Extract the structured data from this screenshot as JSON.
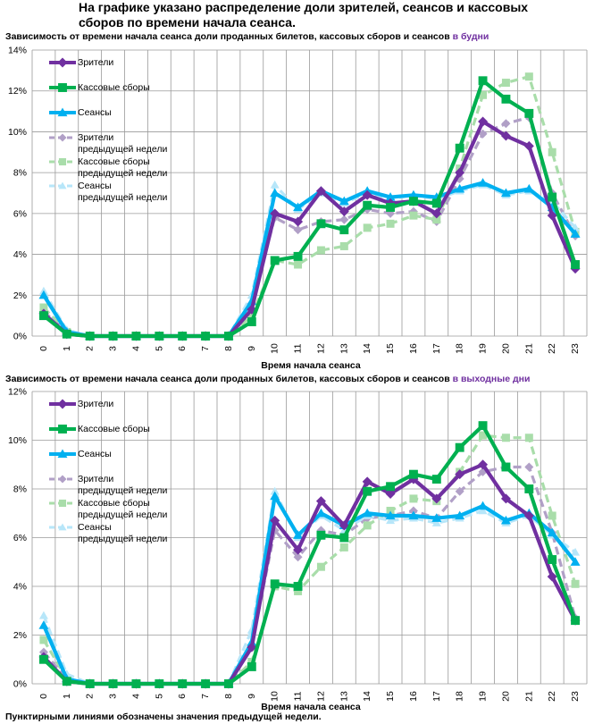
{
  "page": {
    "title": "На графике указано распределение доли зрителей, сеансов и кассовых сборов по времени начала сеанса.",
    "footnote": "Пунктирными линиями обозначены значения предыдущей недели."
  },
  "colors": {
    "viewers": "#7030A0",
    "box_office": "#00B050",
    "sessions": "#00B0F0",
    "viewers_prev": "#B1A0C7",
    "box_office_prev": "#A9DDAA",
    "sessions_prev": "#B7E6F9",
    "accent_text": "#7030A0"
  },
  "chart_data": [
    {
      "type": "line",
      "title": "Зависимость от времени начала сеанса доли проданных билетов, кассовых сборов и сеансов",
      "title_accent": "в будни",
      "xlabel": "Время начала сеанса",
      "ylabel": "",
      "ylim": [
        0,
        14
      ],
      "yticks": [
        0,
        2,
        4,
        6,
        8,
        10,
        12,
        14
      ],
      "ytick_labels": [
        "0%",
        "2%",
        "4%",
        "6%",
        "8%",
        "10%",
        "12%",
        "14%"
      ],
      "categories": [
        "0",
        "1",
        "2",
        "3",
        "4",
        "5",
        "6",
        "7",
        "8",
        "9",
        "10",
        "11",
        "12",
        "13",
        "14",
        "15",
        "16",
        "17",
        "18",
        "19",
        "20",
        "21",
        "22",
        "23"
      ],
      "series": [
        {
          "name": "Зрители",
          "key": "viewers",
          "style": "solid",
          "marker": "diamond",
          "values": [
            1.1,
            0.1,
            0.0,
            0.0,
            0.0,
            0.0,
            0.0,
            0.0,
            0.0,
            1.3,
            6.0,
            5.6,
            7.1,
            6.1,
            6.9,
            6.5,
            6.6,
            6.0,
            8.0,
            10.5,
            9.8,
            9.3,
            5.9,
            3.3
          ]
        },
        {
          "name": "Кассовые сборы",
          "key": "box_office",
          "style": "solid",
          "marker": "square",
          "values": [
            1.0,
            0.1,
            0.0,
            0.0,
            0.0,
            0.0,
            0.0,
            0.0,
            0.0,
            0.7,
            3.7,
            3.9,
            5.5,
            5.2,
            6.4,
            6.3,
            6.6,
            6.5,
            9.2,
            12.5,
            11.6,
            10.9,
            6.8,
            3.5
          ]
        },
        {
          "name": "Сеансы",
          "key": "sessions",
          "style": "solid",
          "marker": "triangle",
          "values": [
            2.0,
            0.2,
            0.0,
            0.0,
            0.0,
            0.0,
            0.0,
            0.0,
            0.0,
            1.7,
            7.0,
            6.3,
            7.1,
            6.6,
            7.1,
            6.8,
            6.9,
            6.8,
            7.2,
            7.5,
            7.0,
            7.2,
            6.3,
            5.0
          ]
        },
        {
          "name": "Зрители предыдущей недели",
          "key": "viewers_prev",
          "style": "dashed",
          "marker": "diamond",
          "values": [
            1.2,
            0.2,
            0.0,
            0.0,
            0.0,
            0.0,
            0.0,
            0.0,
            0.0,
            1.6,
            5.8,
            5.2,
            5.6,
            5.7,
            6.2,
            6.0,
            6.1,
            5.6,
            7.7,
            9.9,
            10.4,
            10.7,
            7.0,
            4.9
          ]
        },
        {
          "name": "Кассовые сборы предыдущей недели",
          "key": "box_office_prev",
          "style": "dashed",
          "marker": "square",
          "values": [
            1.4,
            0.2,
            0.0,
            0.0,
            0.0,
            0.0,
            0.0,
            0.0,
            0.0,
            1.0,
            3.7,
            3.5,
            4.2,
            4.4,
            5.3,
            5.5,
            5.9,
            5.7,
            8.2,
            11.8,
            12.4,
            12.7,
            9.0,
            5.1
          ]
        },
        {
          "name": "Сеансы предыдущей недели",
          "key": "sessions_prev",
          "style": "dashed",
          "marker": "triangle",
          "values": [
            2.2,
            0.3,
            0.0,
            0.0,
            0.0,
            0.0,
            0.0,
            0.0,
            0.0,
            2.0,
            7.4,
            6.2,
            7.0,
            6.5,
            7.0,
            6.7,
            6.9,
            6.7,
            7.1,
            7.4,
            6.9,
            7.1,
            6.6,
            5.3
          ]
        }
      ],
      "legend": [
        [
          "Зрители"
        ],
        [
          "Кассовые сборы"
        ],
        [
          "Сеансы"
        ],
        [
          "Зрители",
          "предыдущей недели"
        ],
        [
          "Кассовые сборы",
          "предыдущей недели"
        ],
        [
          "Сеансы",
          "предыдущей недели"
        ]
      ]
    },
    {
      "type": "line",
      "title": "Зависимость от времени начала сеанса доли проданных билетов, кассовых сборов и сеансов",
      "title_accent": "в выходные дни",
      "xlabel": "Время начала сеанса",
      "ylabel": "",
      "ylim": [
        0,
        12
      ],
      "yticks": [
        0,
        2,
        4,
        6,
        8,
        10,
        12
      ],
      "ytick_labels": [
        "0%",
        "2%",
        "4%",
        "6%",
        "8%",
        "10%",
        "12%"
      ],
      "categories": [
        "0",
        "1",
        "2",
        "3",
        "4",
        "5",
        "6",
        "7",
        "8",
        "9",
        "10",
        "11",
        "12",
        "13",
        "14",
        "15",
        "16",
        "17",
        "18",
        "19",
        "20",
        "21",
        "22",
        "23"
      ],
      "series": [
        {
          "name": "Зрители",
          "key": "viewers",
          "style": "solid",
          "marker": "diamond",
          "values": [
            1.1,
            0.1,
            0.0,
            0.0,
            0.0,
            0.0,
            0.0,
            0.0,
            0.0,
            1.5,
            6.7,
            5.5,
            7.5,
            6.5,
            8.3,
            7.8,
            8.4,
            7.6,
            8.6,
            9.0,
            7.6,
            6.9,
            4.4,
            2.6
          ]
        },
        {
          "name": "Кассовые сборы",
          "key": "box_office",
          "style": "solid",
          "marker": "square",
          "values": [
            1.0,
            0.1,
            0.0,
            0.0,
            0.0,
            0.0,
            0.0,
            0.0,
            0.0,
            0.7,
            4.1,
            4.0,
            6.1,
            6.0,
            7.9,
            8.1,
            8.6,
            8.4,
            9.7,
            10.6,
            8.9,
            8.0,
            5.1,
            2.6
          ]
        },
        {
          "name": "Сеансы",
          "key": "sessions",
          "style": "solid",
          "marker": "triangle",
          "values": [
            2.4,
            0.2,
            0.0,
            0.0,
            0.0,
            0.0,
            0.0,
            0.0,
            0.0,
            1.7,
            7.7,
            6.1,
            7.0,
            6.5,
            7.0,
            6.9,
            6.9,
            6.8,
            6.9,
            7.3,
            6.7,
            7.0,
            6.2,
            5.0
          ]
        },
        {
          "name": "Зрители предыдущей недели",
          "key": "viewers_prev",
          "style": "dashed",
          "marker": "diamond",
          "values": [
            1.3,
            0.2,
            0.0,
            0.0,
            0.0,
            0.0,
            0.0,
            0.0,
            0.0,
            1.6,
            6.3,
            5.2,
            6.3,
            6.1,
            6.8,
            6.9,
            7.1,
            6.8,
            7.9,
            8.7,
            8.9,
            8.9,
            6.2,
            2.7
          ]
        },
        {
          "name": "Кассовые сборы предыдущей недели",
          "key": "box_office_prev",
          "style": "dashed",
          "marker": "square",
          "values": [
            1.8,
            0.2,
            0.0,
            0.0,
            0.0,
            0.0,
            0.0,
            0.0,
            0.0,
            0.9,
            4.0,
            3.8,
            4.8,
            5.6,
            6.5,
            7.1,
            7.6,
            7.5,
            8.7,
            10.2,
            10.1,
            10.1,
            6.9,
            4.1
          ]
        },
        {
          "name": "Сеансы предыдущей недели",
          "key": "sessions_prev",
          "style": "dashed",
          "marker": "triangle",
          "values": [
            2.8,
            0.4,
            0.0,
            0.0,
            0.0,
            0.0,
            0.0,
            0.0,
            0.0,
            2.2,
            7.9,
            6.0,
            6.9,
            6.3,
            6.9,
            6.7,
            6.8,
            6.6,
            6.8,
            7.1,
            6.6,
            6.9,
            6.1,
            5.4
          ]
        }
      ],
      "legend": [
        [
          "Зрители"
        ],
        [
          "Кассовые сборы"
        ],
        [
          "Сеансы"
        ],
        [
          "Зрители",
          "предыдущей недели"
        ],
        [
          "Кассовые сборы",
          "предыдущей недели"
        ],
        [
          "Сеансы",
          "предыдущей недели"
        ]
      ]
    }
  ]
}
